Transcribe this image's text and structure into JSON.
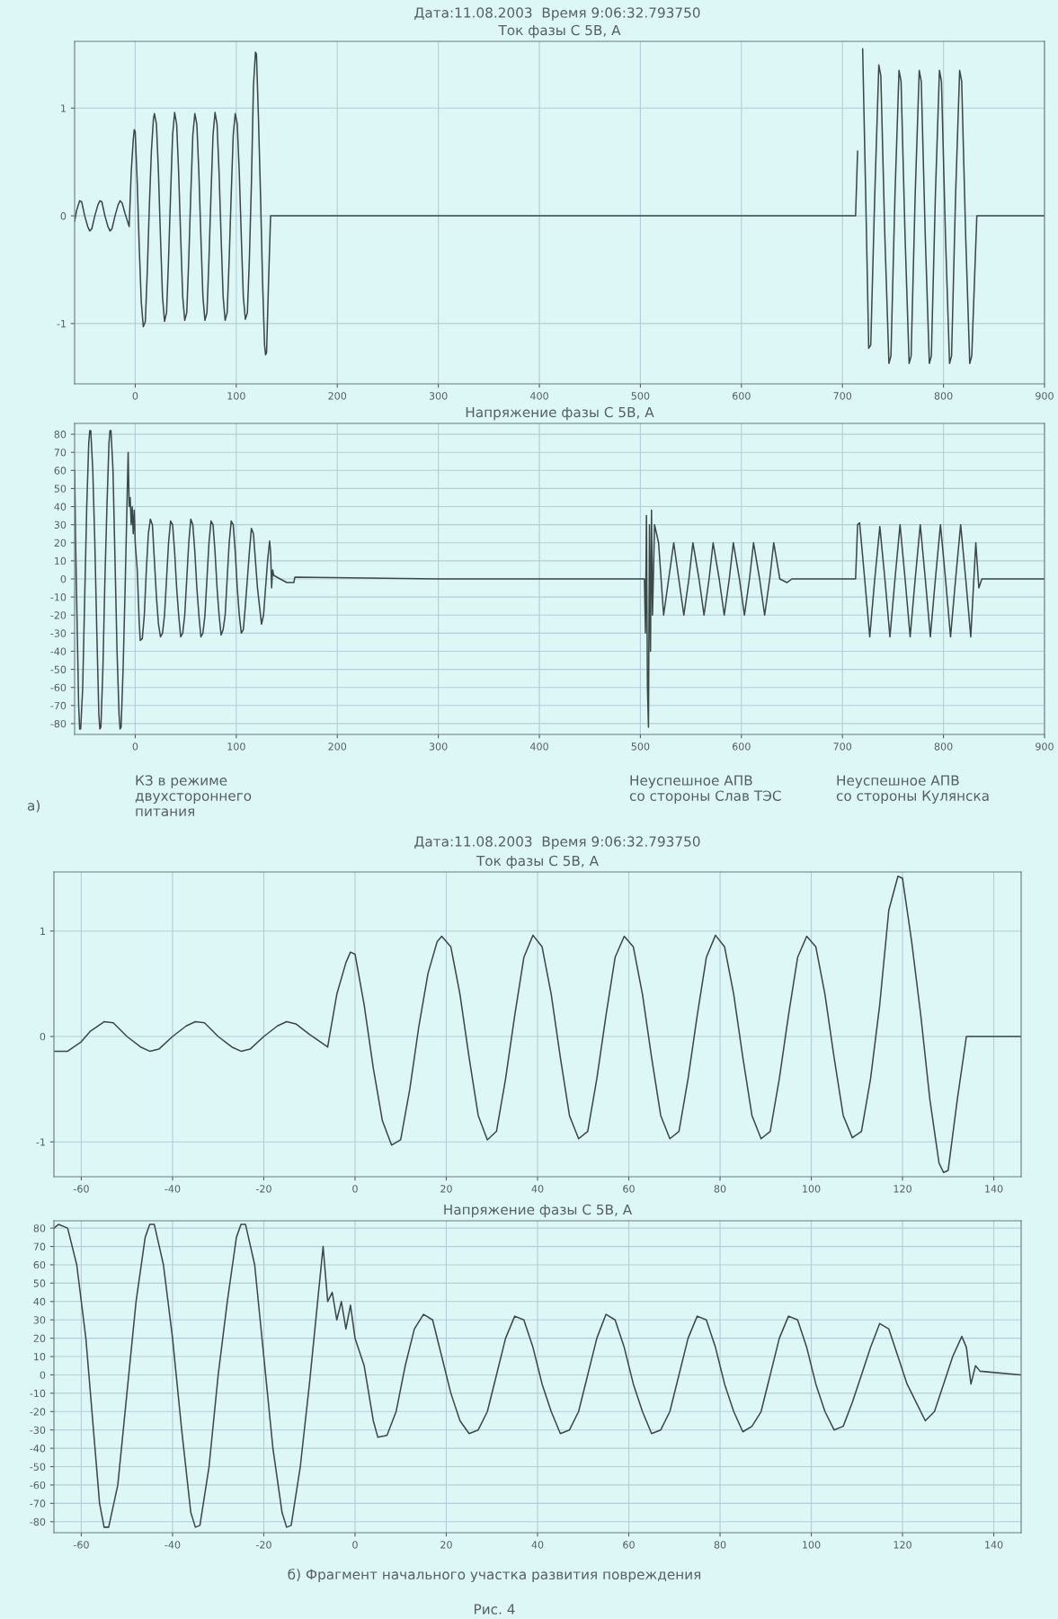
{
  "chart_data": [
    {
      "type": "line",
      "title": "Ток фазы С 5В, А",
      "annotations": [
        "Дата:11.08.2003  Время 9:06:32.793750"
      ],
      "xlim": [
        -60,
        900
      ],
      "xticks": [
        0,
        100,
        200,
        300,
        400,
        500,
        600,
        700,
        800,
        900
      ],
      "ylim": [
        -1.56,
        1.62
      ],
      "yticks": [
        -1,
        0,
        1
      ],
      "grid": true,
      "line_style": "solid",
      "marker": "none",
      "series": [
        {
          "color": "#3d4848",
          "x": [
            -60,
            -58,
            -55,
            -53,
            -50,
            -47,
            -45,
            -43,
            -40,
            -37,
            -35,
            -33,
            -30,
            -27,
            -25,
            -23,
            -20,
            -17,
            -15,
            -13,
            -10,
            -6,
            -4,
            -2,
            -1,
            0,
            2,
            4,
            6,
            8,
            10,
            12,
            14,
            16,
            18,
            19,
            21,
            23,
            25,
            27,
            29,
            31,
            33,
            35,
            37,
            39,
            41,
            43,
            45,
            47,
            49,
            51,
            53,
            55,
            57,
            59,
            61,
            63,
            65,
            67,
            69,
            71,
            73,
            75,
            77,
            79,
            81,
            83,
            85,
            87,
            89,
            91,
            93,
            95,
            97,
            99,
            101,
            103,
            105,
            107,
            109,
            111,
            113,
            115,
            117,
            119,
            120,
            122,
            124,
            126,
            128,
            129,
            130,
            132,
            134,
            200,
            713,
            715,
            718,
            720,
            723,
            726,
            728,
            732,
            736,
            738,
            742,
            746,
            748,
            752,
            756,
            758,
            762,
            766,
            768,
            772,
            776,
            778,
            782,
            786,
            788,
            792,
            796,
            798,
            802,
            806,
            808,
            812,
            816,
            818,
            822,
            826,
            828,
            833,
            900
          ],
          "values": [
            -0.05,
            0.05,
            0.14,
            0.13,
            0.0,
            -0.1,
            -0.14,
            -0.12,
            0.0,
            0.1,
            0.14,
            0.13,
            0.0,
            -0.1,
            -0.14,
            -0.12,
            0.0,
            0.1,
            0.14,
            0.12,
            0.02,
            -0.1,
            0.4,
            0.7,
            0.8,
            0.78,
            0.3,
            -0.3,
            -0.8,
            -1.03,
            -0.98,
            -0.5,
            0.1,
            0.6,
            0.9,
            0.95,
            0.85,
            0.4,
            -0.2,
            -0.75,
            -0.98,
            -0.9,
            -0.4,
            0.2,
            0.75,
            0.96,
            0.85,
            0.4,
            -0.2,
            -0.75,
            -0.97,
            -0.9,
            -0.4,
            0.2,
            0.75,
            0.95,
            0.85,
            0.4,
            -0.2,
            -0.75,
            -0.97,
            -0.9,
            -0.4,
            0.2,
            0.75,
            0.96,
            0.85,
            0.4,
            -0.2,
            -0.75,
            -0.97,
            -0.9,
            -0.4,
            0.2,
            0.75,
            0.95,
            0.85,
            0.4,
            -0.2,
            -0.75,
            -0.96,
            -0.9,
            -0.4,
            0.3,
            1.2,
            1.52,
            1.5,
            0.9,
            0.2,
            -0.6,
            -1.2,
            -1.29,
            -1.27,
            -0.6,
            0.0,
            0.0,
            0.0,
            0.6,
            null,
            1.55,
            0.2,
            -1.23,
            -1.2,
            0.2,
            1.4,
            1.3,
            -0.2,
            -1.37,
            -1.3,
            0.2,
            1.35,
            1.25,
            -0.2,
            -1.37,
            -1.3,
            0.2,
            1.35,
            1.25,
            -0.2,
            -1.37,
            -1.3,
            0.2,
            1.35,
            1.25,
            -0.2,
            -1.37,
            -1.3,
            0.2,
            1.35,
            1.25,
            -0.2,
            -1.37,
            -1.3,
            0.0,
            0.0
          ]
        }
      ]
    },
    {
      "type": "line",
      "title": "Напряжение фазы С 5В, А",
      "annotations": [
        "КЗ в режиме\nдвухстороннего\nпитания",
        "Неуспешное АПВ\nсо стороны Слав ТЭС",
        "Неуспешное АПВ\nсо стороны Кулянска",
        "а)"
      ],
      "xlim": [
        -60,
        900
      ],
      "xticks": [
        0,
        100,
        200,
        300,
        400,
        500,
        600,
        700,
        800,
        900
      ],
      "ylim": [
        -86,
        86
      ],
      "yticks": [
        -80,
        -70,
        -60,
        -50,
        -40,
        -30,
        -20,
        -10,
        0,
        10,
        20,
        30,
        40,
        50,
        60,
        70,
        80
      ],
      "grid": true,
      "line_style": "solid",
      "marker": "none",
      "series": [
        {
          "color": "#3d4848",
          "x": [
            -60,
            -59,
            -57,
            -56,
            -55,
            -54,
            -52,
            -50,
            -48,
            -46,
            -45,
            -44,
            -42,
            -40,
            -38,
            -36,
            -35,
            -34,
            -32,
            -30,
            -28,
            -26,
            -25,
            -24,
            -22,
            -20,
            -18,
            -16,
            -15,
            -14,
            -12,
            -10,
            -8,
            -7,
            -6,
            -5,
            -4,
            -3,
            -2,
            -1,
            0,
            2,
            4,
            5,
            7,
            9,
            11,
            13,
            15,
            17,
            19,
            21,
            23,
            25,
            27,
            29,
            31,
            33,
            35,
            37,
            39,
            41,
            43,
            45,
            47,
            49,
            51,
            53,
            55,
            57,
            59,
            61,
            63,
            65,
            67,
            69,
            71,
            73,
            75,
            77,
            79,
            81,
            83,
            85,
            87,
            89,
            91,
            93,
            95,
            97,
            99,
            101,
            103,
            105,
            107,
            109,
            111,
            113,
            115,
            117,
            119,
            121,
            123,
            125,
            127,
            129,
            131,
            133,
            134,
            135,
            136,
            137,
            150,
            157,
            158,
            300,
            504,
            505,
            506,
            507,
            508,
            509,
            510,
            511,
            512,
            514,
            516,
            518,
            523,
            528,
            533,
            538,
            543,
            548,
            552,
            558,
            563,
            568,
            572,
            578,
            583,
            588,
            592,
            598,
            603,
            608,
            612,
            618,
            623,
            628,
            632,
            638,
            645,
            650,
            713,
            715,
            717,
            722,
            727,
            732,
            737,
            742,
            747,
            752,
            757,
            762,
            767,
            772,
            777,
            782,
            787,
            792,
            797,
            802,
            807,
            812,
            817,
            822,
            827,
            832,
            835,
            838,
            900
          ],
          "values": [
            60,
            20,
            -40,
            -70,
            -83,
            -83,
            -60,
            -10,
            40,
            75,
            82,
            82,
            60,
            20,
            -30,
            -75,
            -83,
            -82,
            -50,
            0,
            40,
            75,
            82,
            82,
            60,
            10,
            -40,
            -75,
            -83,
            -82,
            -50,
            -5,
            45,
            70,
            40,
            45,
            30,
            40,
            25,
            38,
            20,
            5,
            -25,
            -34,
            -33,
            -20,
            5,
            25,
            33,
            30,
            10,
            -10,
            -25,
            -32,
            -30,
            -20,
            0,
            20,
            32,
            30,
            15,
            -5,
            -20,
            -32,
            -30,
            -20,
            0,
            20,
            33,
            30,
            15,
            -5,
            -20,
            -32,
            -30,
            -20,
            0,
            20,
            32,
            30,
            15,
            -5,
            -20,
            -31,
            -28,
            -20,
            0,
            20,
            32,
            30,
            15,
            -5,
            -20,
            -30,
            -28,
            -15,
            0,
            15,
            28,
            25,
            10,
            -5,
            -15,
            -25,
            -20,
            -5,
            10,
            21,
            15,
            -5,
            5,
            2,
            -2,
            -2,
            1,
            0,
            0,
            -30,
            35,
            -60,
            -82,
            30,
            -40,
            38,
            -20,
            30,
            25,
            20,
            -20,
            0,
            20,
            0,
            -20,
            0,
            20,
            0,
            -20,
            0,
            20,
            0,
            -20,
            0,
            20,
            0,
            -20,
            0,
            20,
            0,
            -20,
            0,
            20,
            0,
            -2,
            0,
            0,
            30,
            31,
            0,
            -32,
            0,
            29,
            0,
            -32,
            0,
            30,
            0,
            -32,
            0,
            30,
            0,
            -32,
            0,
            30,
            0,
            -32,
            0,
            30,
            0,
            -32,
            20,
            -5,
            0,
            0
          ]
        }
      ]
    },
    {
      "type": "line",
      "title": "Ток фазы С 5В, А",
      "annotations": [
        "Дата:11.08.2003  Время 9:06:32.793750"
      ],
      "xlim": [
        -66,
        146
      ],
      "xticks": [
        -60,
        -40,
        -20,
        0,
        20,
        40,
        60,
        80,
        100,
        120,
        140
      ],
      "ylim": [
        -1.33,
        1.56
      ],
      "yticks": [
        -1,
        0,
        1
      ],
      "grid": true,
      "line_style": "solid",
      "marker": "none",
      "series": [
        {
          "color": "#3d4848",
          "x": [
            -66,
            -63,
            -60,
            -58,
            -55,
            -53,
            -50,
            -47,
            -45,
            -43,
            -40,
            -37,
            -35,
            -33,
            -30,
            -27,
            -25,
            -23,
            -20,
            -17,
            -15,
            -13,
            -10,
            -6,
            -4,
            -2,
            -1,
            0,
            2,
            4,
            6,
            8,
            10,
            12,
            14,
            16,
            18,
            19,
            21,
            23,
            25,
            27,
            29,
            31,
            33,
            35,
            37,
            39,
            41,
            43,
            45,
            47,
            49,
            51,
            53,
            55,
            57,
            59,
            61,
            63,
            65,
            67,
            69,
            71,
            73,
            75,
            77,
            79,
            81,
            83,
            85,
            87,
            89,
            91,
            93,
            95,
            97,
            99,
            101,
            103,
            105,
            107,
            109,
            111,
            113,
            115,
            117,
            119,
            120,
            122,
            124,
            126,
            128,
            129,
            130,
            132,
            134,
            146
          ],
          "values": [
            -0.14,
            -0.14,
            -0.05,
            0.05,
            0.14,
            0.13,
            0.0,
            -0.1,
            -0.14,
            -0.12,
            0.0,
            0.1,
            0.14,
            0.13,
            0.0,
            -0.1,
            -0.14,
            -0.12,
            0.0,
            0.1,
            0.14,
            0.12,
            0.02,
            -0.1,
            0.4,
            0.7,
            0.8,
            0.78,
            0.3,
            -0.3,
            -0.8,
            -1.03,
            -0.98,
            -0.5,
            0.1,
            0.6,
            0.9,
            0.95,
            0.85,
            0.4,
            -0.2,
            -0.75,
            -0.98,
            -0.9,
            -0.4,
            0.2,
            0.75,
            0.96,
            0.85,
            0.4,
            -0.2,
            -0.75,
            -0.97,
            -0.9,
            -0.4,
            0.2,
            0.75,
            0.95,
            0.85,
            0.4,
            -0.2,
            -0.75,
            -0.97,
            -0.9,
            -0.4,
            0.2,
            0.75,
            0.96,
            0.85,
            0.4,
            -0.2,
            -0.75,
            -0.97,
            -0.9,
            -0.4,
            0.2,
            0.75,
            0.95,
            0.85,
            0.4,
            -0.2,
            -0.75,
            -0.96,
            -0.9,
            -0.4,
            0.3,
            1.2,
            1.52,
            1.5,
            0.9,
            0.2,
            -0.6,
            -1.2,
            -1.29,
            -1.27,
            -0.6,
            0.0,
            0.0
          ]
        }
      ]
    },
    {
      "type": "line",
      "title": "Напряжение фазы С 5В, А",
      "annotations": [
        "б) Фрагмент начального участка развития повреждения",
        "Рис. 4"
      ],
      "xlim": [
        -66,
        146
      ],
      "xticks": [
        -60,
        -40,
        -20,
        0,
        20,
        40,
        60,
        80,
        100,
        120,
        140
      ],
      "ylim": [
        -86,
        84
      ],
      "yticks": [
        -80,
        -70,
        -60,
        -50,
        -40,
        -30,
        -20,
        -10,
        0,
        10,
        20,
        30,
        40,
        50,
        60,
        70,
        80
      ],
      "grid": true,
      "line_style": "solid",
      "marker": "none",
      "series": [
        {
          "color": "#3d4848",
          "x": [
            -66,
            -65,
            -63,
            -61,
            -59,
            -57,
            -56,
            -55,
            -54,
            -52,
            -50,
            -48,
            -46,
            -45,
            -44,
            -42,
            -40,
            -38,
            -36,
            -35,
            -34,
            -32,
            -30,
            -28,
            -26,
            -25,
            -24,
            -22,
            -20,
            -18,
            -16,
            -15,
            -14,
            -12,
            -10,
            -8,
            -7,
            -6,
            -5,
            -4,
            -3,
            -2,
            -1,
            0,
            2,
            4,
            5,
            7,
            9,
            11,
            13,
            15,
            17,
            19,
            21,
            23,
            25,
            27,
            29,
            31,
            33,
            35,
            37,
            39,
            41,
            43,
            45,
            47,
            49,
            51,
            53,
            55,
            57,
            59,
            61,
            63,
            65,
            67,
            69,
            71,
            73,
            75,
            77,
            79,
            81,
            83,
            85,
            87,
            89,
            91,
            93,
            95,
            97,
            99,
            101,
            103,
            105,
            107,
            109,
            111,
            113,
            115,
            117,
            119,
            121,
            123,
            125,
            127,
            129,
            131,
            133,
            134,
            135,
            136,
            137,
            146
          ],
          "values": [
            80,
            82,
            80,
            60,
            20,
            -40,
            -70,
            -83,
            -83,
            -60,
            -10,
            40,
            75,
            82,
            82,
            60,
            20,
            -30,
            -75,
            -83,
            -82,
            -50,
            0,
            40,
            75,
            82,
            82,
            60,
            10,
            -40,
            -75,
            -83,
            -82,
            -50,
            -5,
            45,
            70,
            40,
            45,
            30,
            40,
            25,
            38,
            20,
            5,
            -25,
            -34,
            -33,
            -20,
            5,
            25,
            33,
            30,
            10,
            -10,
            -25,
            -32,
            -30,
            -20,
            0,
            20,
            32,
            30,
            15,
            -5,
            -20,
            -32,
            -30,
            -20,
            0,
            20,
            33,
            30,
            15,
            -5,
            -20,
            -32,
            -30,
            -20,
            0,
            20,
            32,
            30,
            15,
            -5,
            -20,
            -31,
            -28,
            -20,
            0,
            20,
            32,
            30,
            15,
            -5,
            -20,
            -30,
            -28,
            -15,
            0,
            15,
            28,
            25,
            10,
            -5,
            -15,
            -25,
            -20,
            -5,
            10,
            21,
            15,
            -5,
            5,
            2,
            0
          ]
        }
      ]
    }
  ]
}
